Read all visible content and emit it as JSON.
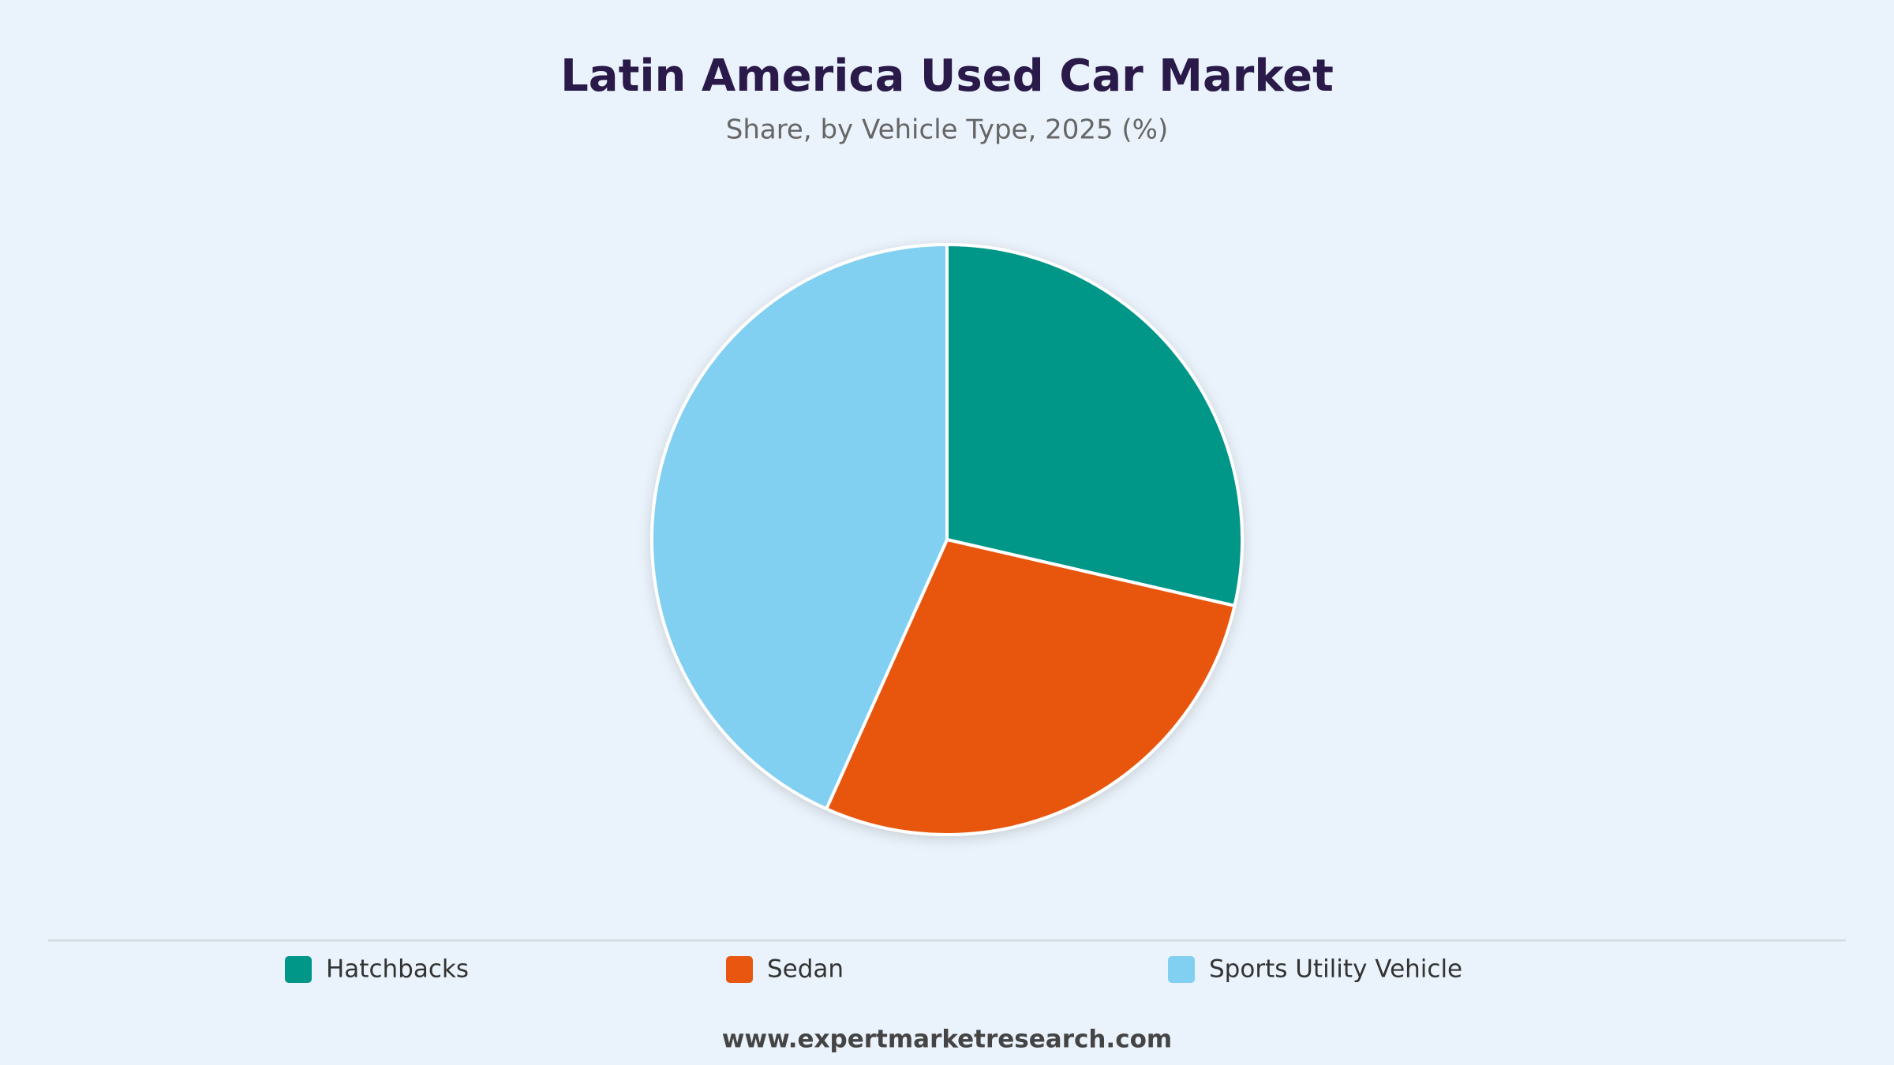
{
  "chart_data": {
    "type": "pie",
    "title": "Latin America Used Car Market",
    "subtitle": "Share, by Vehicle Type, 2025 (%)",
    "categories": [
      "Hatchbacks",
      "Sedan",
      "Sports Utility Vehicle"
    ],
    "values": [
      28.6,
      28.1,
      43.3
    ],
    "colors": [
      "#009688",
      "#e8560f",
      "#81cff1"
    ],
    "source": "www.expertmarketresearch.com"
  }
}
